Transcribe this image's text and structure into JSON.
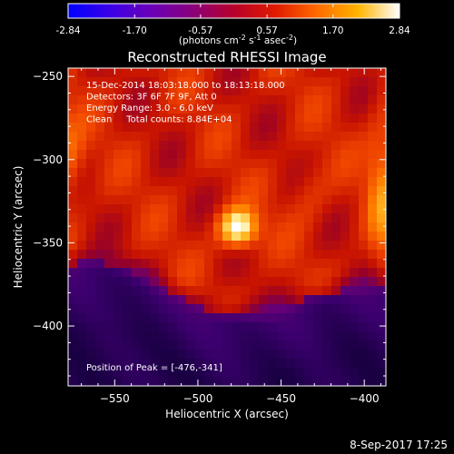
{
  "chart_data": [
    {
      "type": "colorbar",
      "min": -2.84,
      "max": 2.84,
      "tick_labels": [
        "-2.84",
        "-1.70",
        "-0.57",
        "0.57",
        "1.70",
        "2.84"
      ],
      "units_prefix": "(photons cm",
      "units_sup1": "-2",
      "units_mid1": " s",
      "units_sup2": "-1",
      "units_mid2": " asec",
      "units_sup3": "-2",
      "units_suffix": ")",
      "colormap": [
        "#0000ff",
        "#3a00e8",
        "#6a00b8",
        "#8a007a",
        "#b8002a",
        "#e01a00",
        "#ff6a00",
        "#ffb400",
        "#ffffff"
      ]
    },
    {
      "type": "heatmap",
      "title": "Reconstructed RHESSI Image",
      "xlabel": "Heliocentric X (arcsec)",
      "ylabel": "Heliocentric Y (arcsec)",
      "xlim": [
        -578,
        -387
      ],
      "ylim": [
        -436,
        -245
      ],
      "x_ticks": [
        -550,
        -500,
        -450,
        -400
      ],
      "y_ticks": [
        -250,
        -300,
        -350,
        -400
      ],
      "x_tick_labels": [
        "−550",
        "−500",
        "−450",
        "−400"
      ],
      "y_tick_labels": [
        "−250",
        "−300",
        "−350",
        "−400"
      ],
      "peak": [
        -476,
        -341
      ],
      "info_lines": [
        "15-Dec-2014 18:03:18.000 to 18:13:18.000",
        "Detectors: 3F 6F 7F 9F, Att 0",
        "Energy Range: 3.0 - 6.0 keV",
        "Clean     Total counts: 8.84E+04"
      ],
      "peak_label": "Position of Peak = [-476,-341]"
    }
  ],
  "footer": {
    "timestamp": "8-Sep-2017 17:25"
  }
}
